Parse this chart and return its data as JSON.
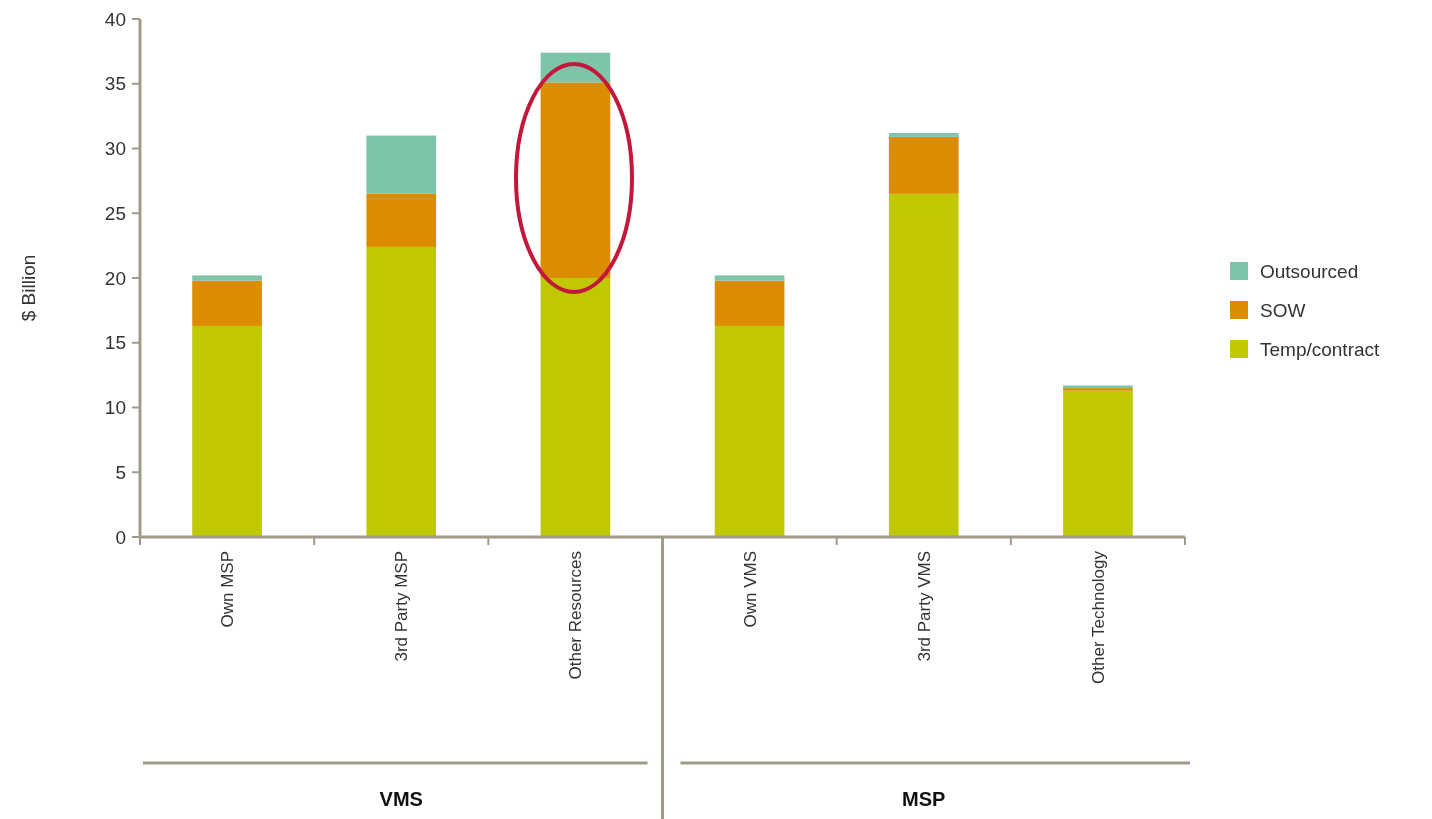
{
  "chart_data": {
    "type": "bar",
    "stacked": true,
    "ylabel": "$ Billion",
    "categories": [
      "Own MSP",
      "3rd Party MSP",
      "Other Resources",
      "Own VMS",
      "3rd Party VMS",
      "Other Technology"
    ],
    "series": [
      {
        "name": "Temp/contract",
        "color": "#bfc800",
        "values": [
          16.3,
          22.4,
          20.0,
          16.3,
          26.5,
          11.3
        ]
      },
      {
        "name": "SOW",
        "color": "#dc8c00",
        "values": [
          3.5,
          4.1,
          15.1,
          3.5,
          4.4,
          0.2
        ]
      },
      {
        "name": "Outsourced",
        "color": "#7ec4a8",
        "values": [
          0.4,
          4.5,
          2.3,
          0.4,
          0.3,
          0.2
        ]
      }
    ],
    "ylim": [
      0,
      40
    ],
    "yticks": [
      0,
      5,
      10,
      15,
      20,
      25,
      30,
      35,
      40
    ],
    "grid": false,
    "legend": "right",
    "annotations": [
      "VMS",
      "MSP"
    ]
  }
}
